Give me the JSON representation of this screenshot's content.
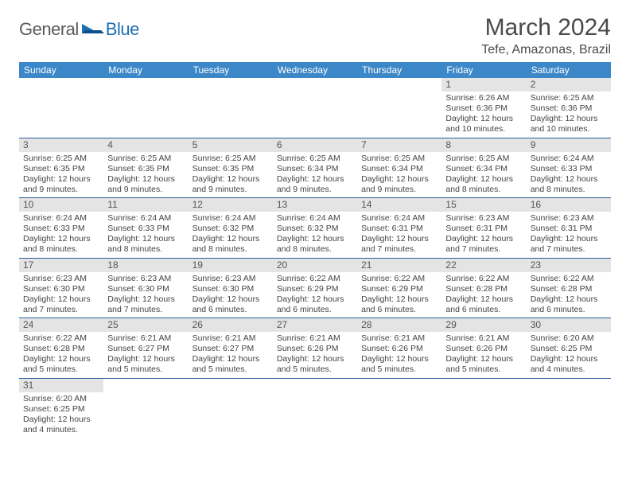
{
  "logo": {
    "general": "General",
    "blue": "Blue"
  },
  "header": {
    "title": "March 2024",
    "location": "Tefe, Amazonas, Brazil"
  },
  "styling": {
    "header_bg": "#3b87c8",
    "header_text": "#ffffff",
    "daynum_bg": "#e4e4e4",
    "row_border": "#2a5f9e",
    "body_text": "#444444"
  },
  "day_labels": [
    "Sunday",
    "Monday",
    "Tuesday",
    "Wednesday",
    "Thursday",
    "Friday",
    "Saturday"
  ],
  "weeks": [
    [
      null,
      null,
      null,
      null,
      null,
      {
        "n": "1",
        "sr": "6:26 AM",
        "ss": "6:36 PM",
        "dl": "12 hours and 10 minutes."
      },
      {
        "n": "2",
        "sr": "6:25 AM",
        "ss": "6:36 PM",
        "dl": "12 hours and 10 minutes."
      }
    ],
    [
      {
        "n": "3",
        "sr": "6:25 AM",
        "ss": "6:35 PM",
        "dl": "12 hours and 9 minutes."
      },
      {
        "n": "4",
        "sr": "6:25 AM",
        "ss": "6:35 PM",
        "dl": "12 hours and 9 minutes."
      },
      {
        "n": "5",
        "sr": "6:25 AM",
        "ss": "6:35 PM",
        "dl": "12 hours and 9 minutes."
      },
      {
        "n": "6",
        "sr": "6:25 AM",
        "ss": "6:34 PM",
        "dl": "12 hours and 9 minutes."
      },
      {
        "n": "7",
        "sr": "6:25 AM",
        "ss": "6:34 PM",
        "dl": "12 hours and 9 minutes."
      },
      {
        "n": "8",
        "sr": "6:25 AM",
        "ss": "6:34 PM",
        "dl": "12 hours and 8 minutes."
      },
      {
        "n": "9",
        "sr": "6:24 AM",
        "ss": "6:33 PM",
        "dl": "12 hours and 8 minutes."
      }
    ],
    [
      {
        "n": "10",
        "sr": "6:24 AM",
        "ss": "6:33 PM",
        "dl": "12 hours and 8 minutes."
      },
      {
        "n": "11",
        "sr": "6:24 AM",
        "ss": "6:33 PM",
        "dl": "12 hours and 8 minutes."
      },
      {
        "n": "12",
        "sr": "6:24 AM",
        "ss": "6:32 PM",
        "dl": "12 hours and 8 minutes."
      },
      {
        "n": "13",
        "sr": "6:24 AM",
        "ss": "6:32 PM",
        "dl": "12 hours and 8 minutes."
      },
      {
        "n": "14",
        "sr": "6:24 AM",
        "ss": "6:31 PM",
        "dl": "12 hours and 7 minutes."
      },
      {
        "n": "15",
        "sr": "6:23 AM",
        "ss": "6:31 PM",
        "dl": "12 hours and 7 minutes."
      },
      {
        "n": "16",
        "sr": "6:23 AM",
        "ss": "6:31 PM",
        "dl": "12 hours and 7 minutes."
      }
    ],
    [
      {
        "n": "17",
        "sr": "6:23 AM",
        "ss": "6:30 PM",
        "dl": "12 hours and 7 minutes."
      },
      {
        "n": "18",
        "sr": "6:23 AM",
        "ss": "6:30 PM",
        "dl": "12 hours and 7 minutes."
      },
      {
        "n": "19",
        "sr": "6:23 AM",
        "ss": "6:30 PM",
        "dl": "12 hours and 6 minutes."
      },
      {
        "n": "20",
        "sr": "6:22 AM",
        "ss": "6:29 PM",
        "dl": "12 hours and 6 minutes."
      },
      {
        "n": "21",
        "sr": "6:22 AM",
        "ss": "6:29 PM",
        "dl": "12 hours and 6 minutes."
      },
      {
        "n": "22",
        "sr": "6:22 AM",
        "ss": "6:28 PM",
        "dl": "12 hours and 6 minutes."
      },
      {
        "n": "23",
        "sr": "6:22 AM",
        "ss": "6:28 PM",
        "dl": "12 hours and 6 minutes."
      }
    ],
    [
      {
        "n": "24",
        "sr": "6:22 AM",
        "ss": "6:28 PM",
        "dl": "12 hours and 5 minutes."
      },
      {
        "n": "25",
        "sr": "6:21 AM",
        "ss": "6:27 PM",
        "dl": "12 hours and 5 minutes."
      },
      {
        "n": "26",
        "sr": "6:21 AM",
        "ss": "6:27 PM",
        "dl": "12 hours and 5 minutes."
      },
      {
        "n": "27",
        "sr": "6:21 AM",
        "ss": "6:26 PM",
        "dl": "12 hours and 5 minutes."
      },
      {
        "n": "28",
        "sr": "6:21 AM",
        "ss": "6:26 PM",
        "dl": "12 hours and 5 minutes."
      },
      {
        "n": "29",
        "sr": "6:21 AM",
        "ss": "6:26 PM",
        "dl": "12 hours and 5 minutes."
      },
      {
        "n": "30",
        "sr": "6:20 AM",
        "ss": "6:25 PM",
        "dl": "12 hours and 4 minutes."
      }
    ],
    [
      {
        "n": "31",
        "sr": "6:20 AM",
        "ss": "6:25 PM",
        "dl": "12 hours and 4 minutes."
      },
      null,
      null,
      null,
      null,
      null,
      null
    ]
  ]
}
